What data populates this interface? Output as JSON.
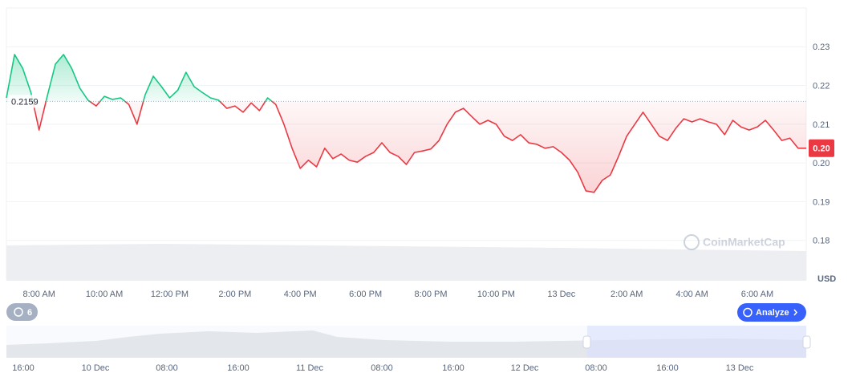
{
  "chart_data": {
    "type": "line",
    "categories": [
      null,
      null,
      null,
      null,
      "8:00 AM",
      null,
      null,
      null,
      null,
      null,
      null,
      null,
      "10:00 AM",
      null,
      null,
      null,
      null,
      null,
      null,
      null,
      "12:00 PM",
      null,
      null,
      null,
      null,
      null,
      null,
      null,
      "2:00 PM",
      null,
      null,
      null,
      null,
      null,
      null,
      null,
      "4:00 PM",
      null,
      null,
      null,
      null,
      null,
      null,
      null,
      "6:00 PM",
      null,
      null,
      null,
      null,
      null,
      null,
      null,
      "8:00 PM",
      null,
      null,
      null,
      null,
      null,
      null,
      null,
      "10:00 PM",
      null,
      null,
      null,
      null,
      null,
      null,
      null,
      "13 Dec",
      null,
      null,
      null,
      null,
      null,
      null,
      null,
      "2:00 AM",
      null,
      null,
      null,
      null,
      null,
      null,
      null,
      "4:00 AM",
      null,
      null,
      null,
      null,
      null,
      null,
      null,
      "6:00 AM",
      null,
      null,
      null,
      null,
      null,
      null
    ],
    "values": [
      0.2168,
      0.228,
      0.2244,
      0.2182,
      0.2085,
      0.2172,
      0.2255,
      0.228,
      0.2244,
      0.2193,
      0.2162,
      0.2147,
      0.2172,
      0.2164,
      0.2168,
      0.2151,
      0.21,
      0.2176,
      0.2224,
      0.2197,
      0.2168,
      0.2188,
      0.2234,
      0.2197,
      0.2182,
      0.2168,
      0.2162,
      0.2141,
      0.2147,
      0.2131,
      0.2155,
      0.2135,
      0.2168,
      0.2151,
      0.21,
      0.2038,
      0.1986,
      0.2007,
      0.199,
      0.2038,
      0.2011,
      0.2023,
      0.2007,
      0.2002,
      0.2017,
      0.2027,
      0.2052,
      0.2027,
      0.2017,
      0.1996,
      0.2027,
      0.2031,
      0.2036,
      0.2058,
      0.21,
      0.2131,
      0.2141,
      0.212,
      0.21,
      0.211,
      0.21,
      0.2069,
      0.2058,
      0.2073,
      0.2052,
      0.2048,
      0.2038,
      0.2042,
      0.2027,
      0.2007,
      0.1976,
      0.1928,
      0.1924,
      0.1955,
      0.1969,
      0.2017,
      0.2069,
      0.21,
      0.2131,
      0.21,
      0.2069,
      0.2058,
      0.2089,
      0.2114,
      0.2106,
      0.2114,
      0.2106,
      0.21,
      0.2073,
      0.211,
      0.2093,
      0.2085,
      0.2093,
      0.211,
      0.2085,
      0.2058,
      0.2064,
      0.2038,
      0.2038
    ],
    "baseline": 0.2159,
    "last_price": {
      "value": 0.2038,
      "label": "0.20"
    },
    "up_color": "#16c784",
    "down_color": "#ea3943",
    "ylim": [
      0.17,
      0.24
    ],
    "yticks": [
      0.18,
      0.19,
      {
        "value": 0.2,
        "label": "0.20"
      },
      0.21,
      0.22,
      0.23
    ],
    "grid": true,
    "currency": "USD"
  },
  "ui": {
    "watermark": "CoinMarketCap",
    "history_count": 6,
    "analyze_button": "Analyze",
    "navigator_labels": [
      "16:00",
      "10 Dec",
      "08:00",
      "16:00",
      "11 Dec",
      "08:00",
      "16:00",
      "12 Dec",
      "08:00",
      "16:00",
      "13 Dec"
    ]
  }
}
